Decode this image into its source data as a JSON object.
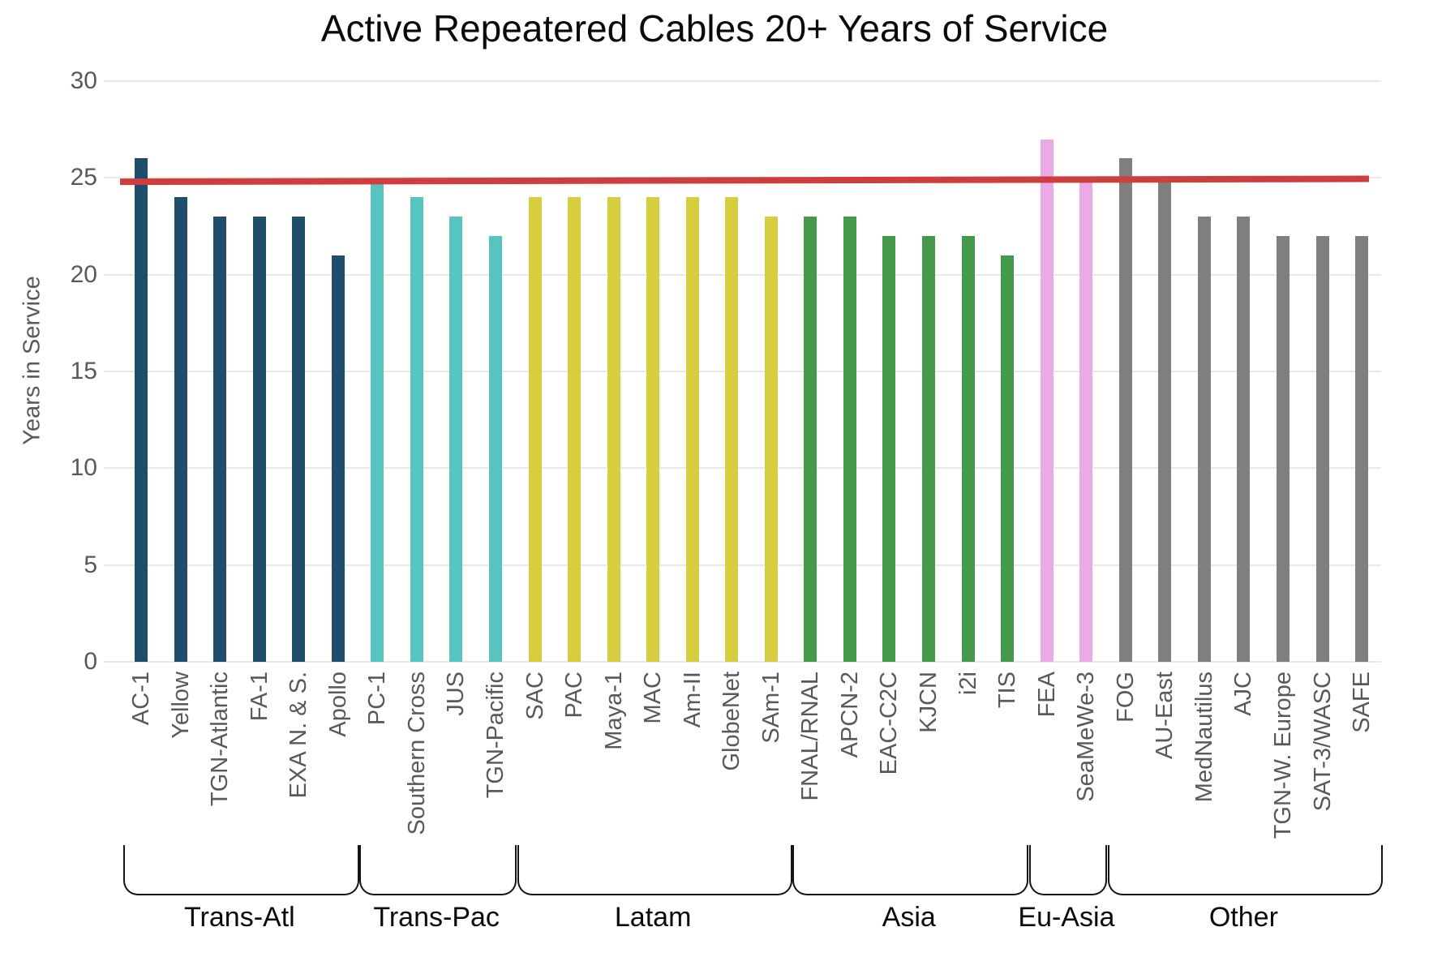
{
  "title": "Active Repeatered Cables 20+ Years of Service",
  "y_axis": {
    "label": "Years in Service",
    "tick_labels": [
      "0",
      "5",
      "10",
      "15",
      "20",
      "25",
      "30"
    ]
  },
  "colors": {
    "trendline": "#CE3E3E",
    "gridline": "#E8E8E8",
    "axis_text": "#595959",
    "bracket": "#141414",
    "title_text": "#0A0A0A"
  },
  "chart_data": {
    "type": "bar",
    "title": "Active Repeatered Cables 20+ Years of Service",
    "xlabel": "",
    "ylabel": "Years in Service",
    "ylim": [
      0,
      30
    ],
    "yticks": [
      0,
      5,
      10,
      15,
      20,
      25,
      30
    ],
    "grid": true,
    "legend": "none",
    "groups": [
      {
        "label": "Trans-Atl",
        "color": "#1F4E6B",
        "cables": [
          {
            "name": "AC-1",
            "years": 26
          },
          {
            "name": "Yellow",
            "years": 24
          },
          {
            "name": "TGN-Atlantic",
            "years": 23
          },
          {
            "name": "FA-1",
            "years": 23
          },
          {
            "name": "EXA N. & S.",
            "years": 23
          },
          {
            "name": "Apollo",
            "years": 21
          }
        ]
      },
      {
        "label": "Trans-Pac",
        "color": "#57C4BF",
        "cables": [
          {
            "name": "PC-1",
            "years": 24.8
          },
          {
            "name": "Southern Cross",
            "years": 24
          },
          {
            "name": "JUS",
            "years": 23
          },
          {
            "name": "TGN-Pacific",
            "years": 22
          }
        ]
      },
      {
        "label": "Latam",
        "color": "#D7CE3F",
        "cables": [
          {
            "name": "SAC",
            "years": 24
          },
          {
            "name": "PAC",
            "years": 24
          },
          {
            "name": "Maya-1",
            "years": 24
          },
          {
            "name": "MAC",
            "years": 24
          },
          {
            "name": "Am-II",
            "years": 24
          },
          {
            "name": "GlobeNet",
            "years": 24
          },
          {
            "name": "SAm-1",
            "years": 23
          }
        ]
      },
      {
        "label": "Asia",
        "color": "#45994A",
        "cables": [
          {
            "name": "FNAL/RNAL",
            "years": 23
          },
          {
            "name": "APCN-2",
            "years": 23
          },
          {
            "name": "EAC-C2C",
            "years": 22
          },
          {
            "name": "KJCN",
            "years": 22
          },
          {
            "name": "i2i",
            "years": 22
          },
          {
            "name": "TIS",
            "years": 21
          }
        ]
      },
      {
        "label": "Eu-Asia",
        "color": "#EBA9E6",
        "cables": [
          {
            "name": "FEA",
            "years": 27
          },
          {
            "name": "SeaMeWe-3",
            "years": 24.8
          }
        ]
      },
      {
        "label": "Other",
        "color": "#7F7F7F",
        "cables": [
          {
            "name": "FOG",
            "years": 26
          },
          {
            "name": "AU-East",
            "years": 24.8
          },
          {
            "name": "MedNautilus",
            "years": 23
          },
          {
            "name": "AJC",
            "years": 23
          },
          {
            "name": "TGN-W. Europe",
            "years": 22
          },
          {
            "name": "SAT-3/WASC",
            "years": 22
          },
          {
            "name": "SAFE",
            "years": 22
          }
        ]
      }
    ],
    "trendline": {
      "description": "red reference line near 25 years",
      "start_value": 24.8,
      "end_value": 24.95
    }
  }
}
